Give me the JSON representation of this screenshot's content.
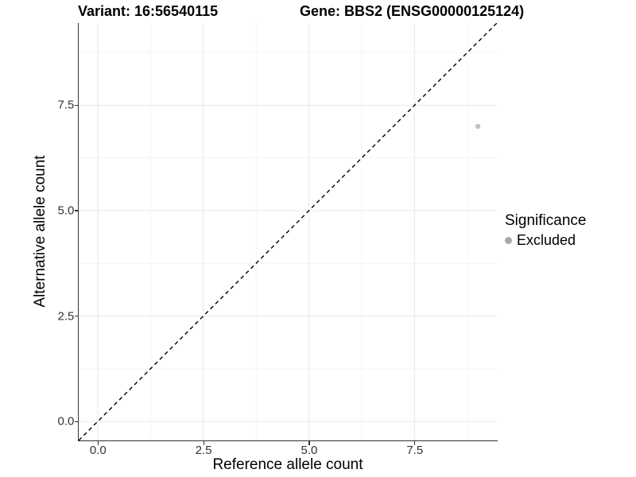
{
  "figure": {
    "title_variant": "Variant: 16:56540115",
    "title_gene": "Gene: BBS2 (ENSG00000125124)"
  },
  "axes": {
    "x": {
      "title": "Reference allele count",
      "tick_labels": [
        "0.0",
        "2.5",
        "5.0",
        "7.5"
      ]
    },
    "y": {
      "title": "Alternative allele count",
      "tick_labels": [
        "0.0",
        "2.5",
        "5.0",
        "7.5"
      ]
    }
  },
  "legend": {
    "title": "Significance",
    "items": [
      {
        "label": "Excluded",
        "marker": "circle-icon",
        "color": "#a8a8a8"
      }
    ]
  },
  "chart_data": {
    "type": "scatter",
    "title": "Variant: 16:56540115 — Gene: BBS2 (ENSG00000125124)",
    "xlabel": "Reference allele count",
    "ylabel": "Alternative allele count",
    "xlim": [
      -0.45,
      9.45
    ],
    "ylim": [
      -0.45,
      9.45
    ],
    "xticks": [
      0,
      2.5,
      5,
      7.5
    ],
    "yticks": [
      0,
      2.5,
      5,
      7.5
    ],
    "grid": {
      "major": true,
      "minor": true,
      "major_color": "#ebebeb",
      "minor_color": "#f4f4f4"
    },
    "legend_position": "right",
    "series": [
      {
        "name": "Excluded",
        "color": "#c2c2c2",
        "points": [
          [
            9,
            7
          ]
        ],
        "point_radius_px": 3.2
      }
    ],
    "reference_line": {
      "kind": "identity",
      "slope": 1,
      "intercept": 0,
      "linetype": "dashed",
      "color": "#000000"
    }
  },
  "style": {
    "axis_line_color": "#333333",
    "tick_color": "#333333",
    "tick_label_color": "#333333"
  }
}
